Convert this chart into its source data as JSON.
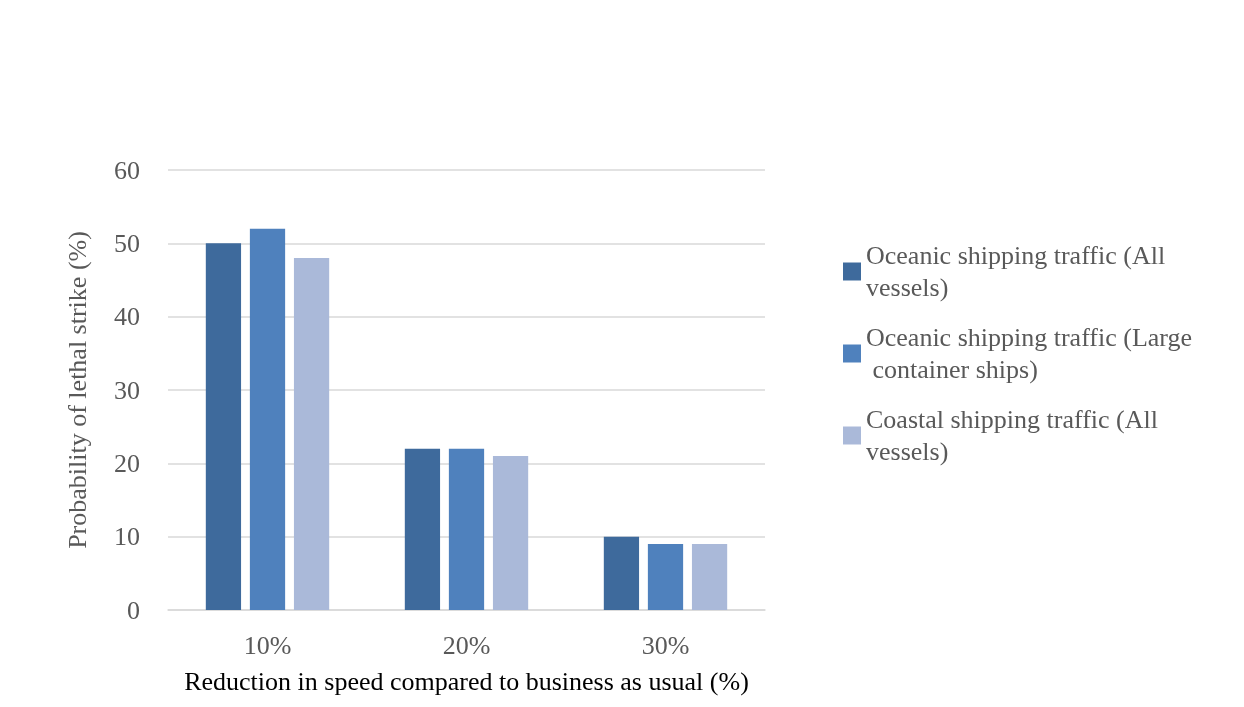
{
  "chart_data": {
    "type": "bar",
    "xlabel": "Reduction in speed compared to business as usual (%)",
    "ylabel": "Probability of lethal strike (%)",
    "categories": [
      "10%",
      "20%",
      "30%"
    ],
    "series": [
      {
        "name": "Oceanic shipping traffic (All vessels)",
        "color": "#3e6a9c",
        "values": [
          50,
          22,
          10
        ]
      },
      {
        "name": "Oceanic shipping traffic (Large container ships)",
        "color": "#4f81bd",
        "values": [
          52,
          22,
          9
        ]
      },
      {
        "name": "Coastal shipping traffic (All vessels)",
        "color": "#aab9d9",
        "values": [
          48,
          21,
          9
        ]
      }
    ],
    "ylim": [
      0,
      60
    ],
    "yticks": [
      0,
      10,
      20,
      30,
      40,
      50,
      60
    ],
    "grid": "y",
    "legend": "right"
  }
}
